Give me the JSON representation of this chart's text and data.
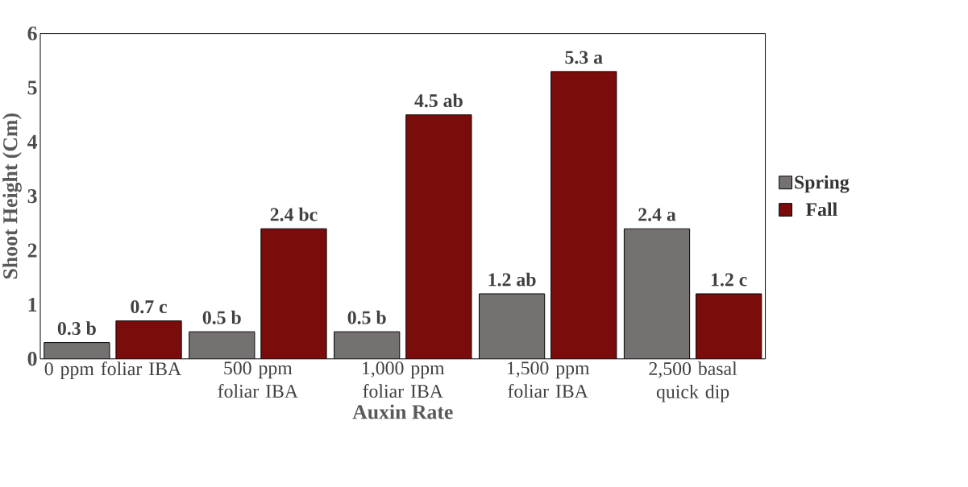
{
  "chart_data": {
    "type": "bar",
    "xlabel": "Auxin Rate",
    "ylabel": "Shoot  Height (Cm)",
    "categories": [
      "0 ppm foliar IBA",
      "500 ppm foliar IBA",
      "1,000 ppm foliar IBA",
      "1,500 ppm foliar IBA",
      "2,500 basal quick dip"
    ],
    "series": [
      {
        "name": "Spring",
        "color": "#767171",
        "values": [
          0.3,
          0.5,
          0.5,
          1.2,
          2.4
        ],
        "value_labels": [
          "0.3 b",
          "0.5 b",
          "0.5 b",
          "1.2 ab",
          "2.4 a"
        ]
      },
      {
        "name": "Fall",
        "color": "#7b0c0c",
        "values": [
          0.7,
          2.4,
          4.5,
          5.3,
          1.2
        ],
        "value_labels": [
          "0.7 c",
          "2.4 bc",
          "4.5 ab",
          "5.3 a",
          "1.2 c"
        ]
      }
    ],
    "ylim": [
      0,
      6
    ],
    "yticks": [
      0,
      1,
      2,
      3,
      4,
      5,
      6
    ],
    "grid": false,
    "legend": "right"
  }
}
